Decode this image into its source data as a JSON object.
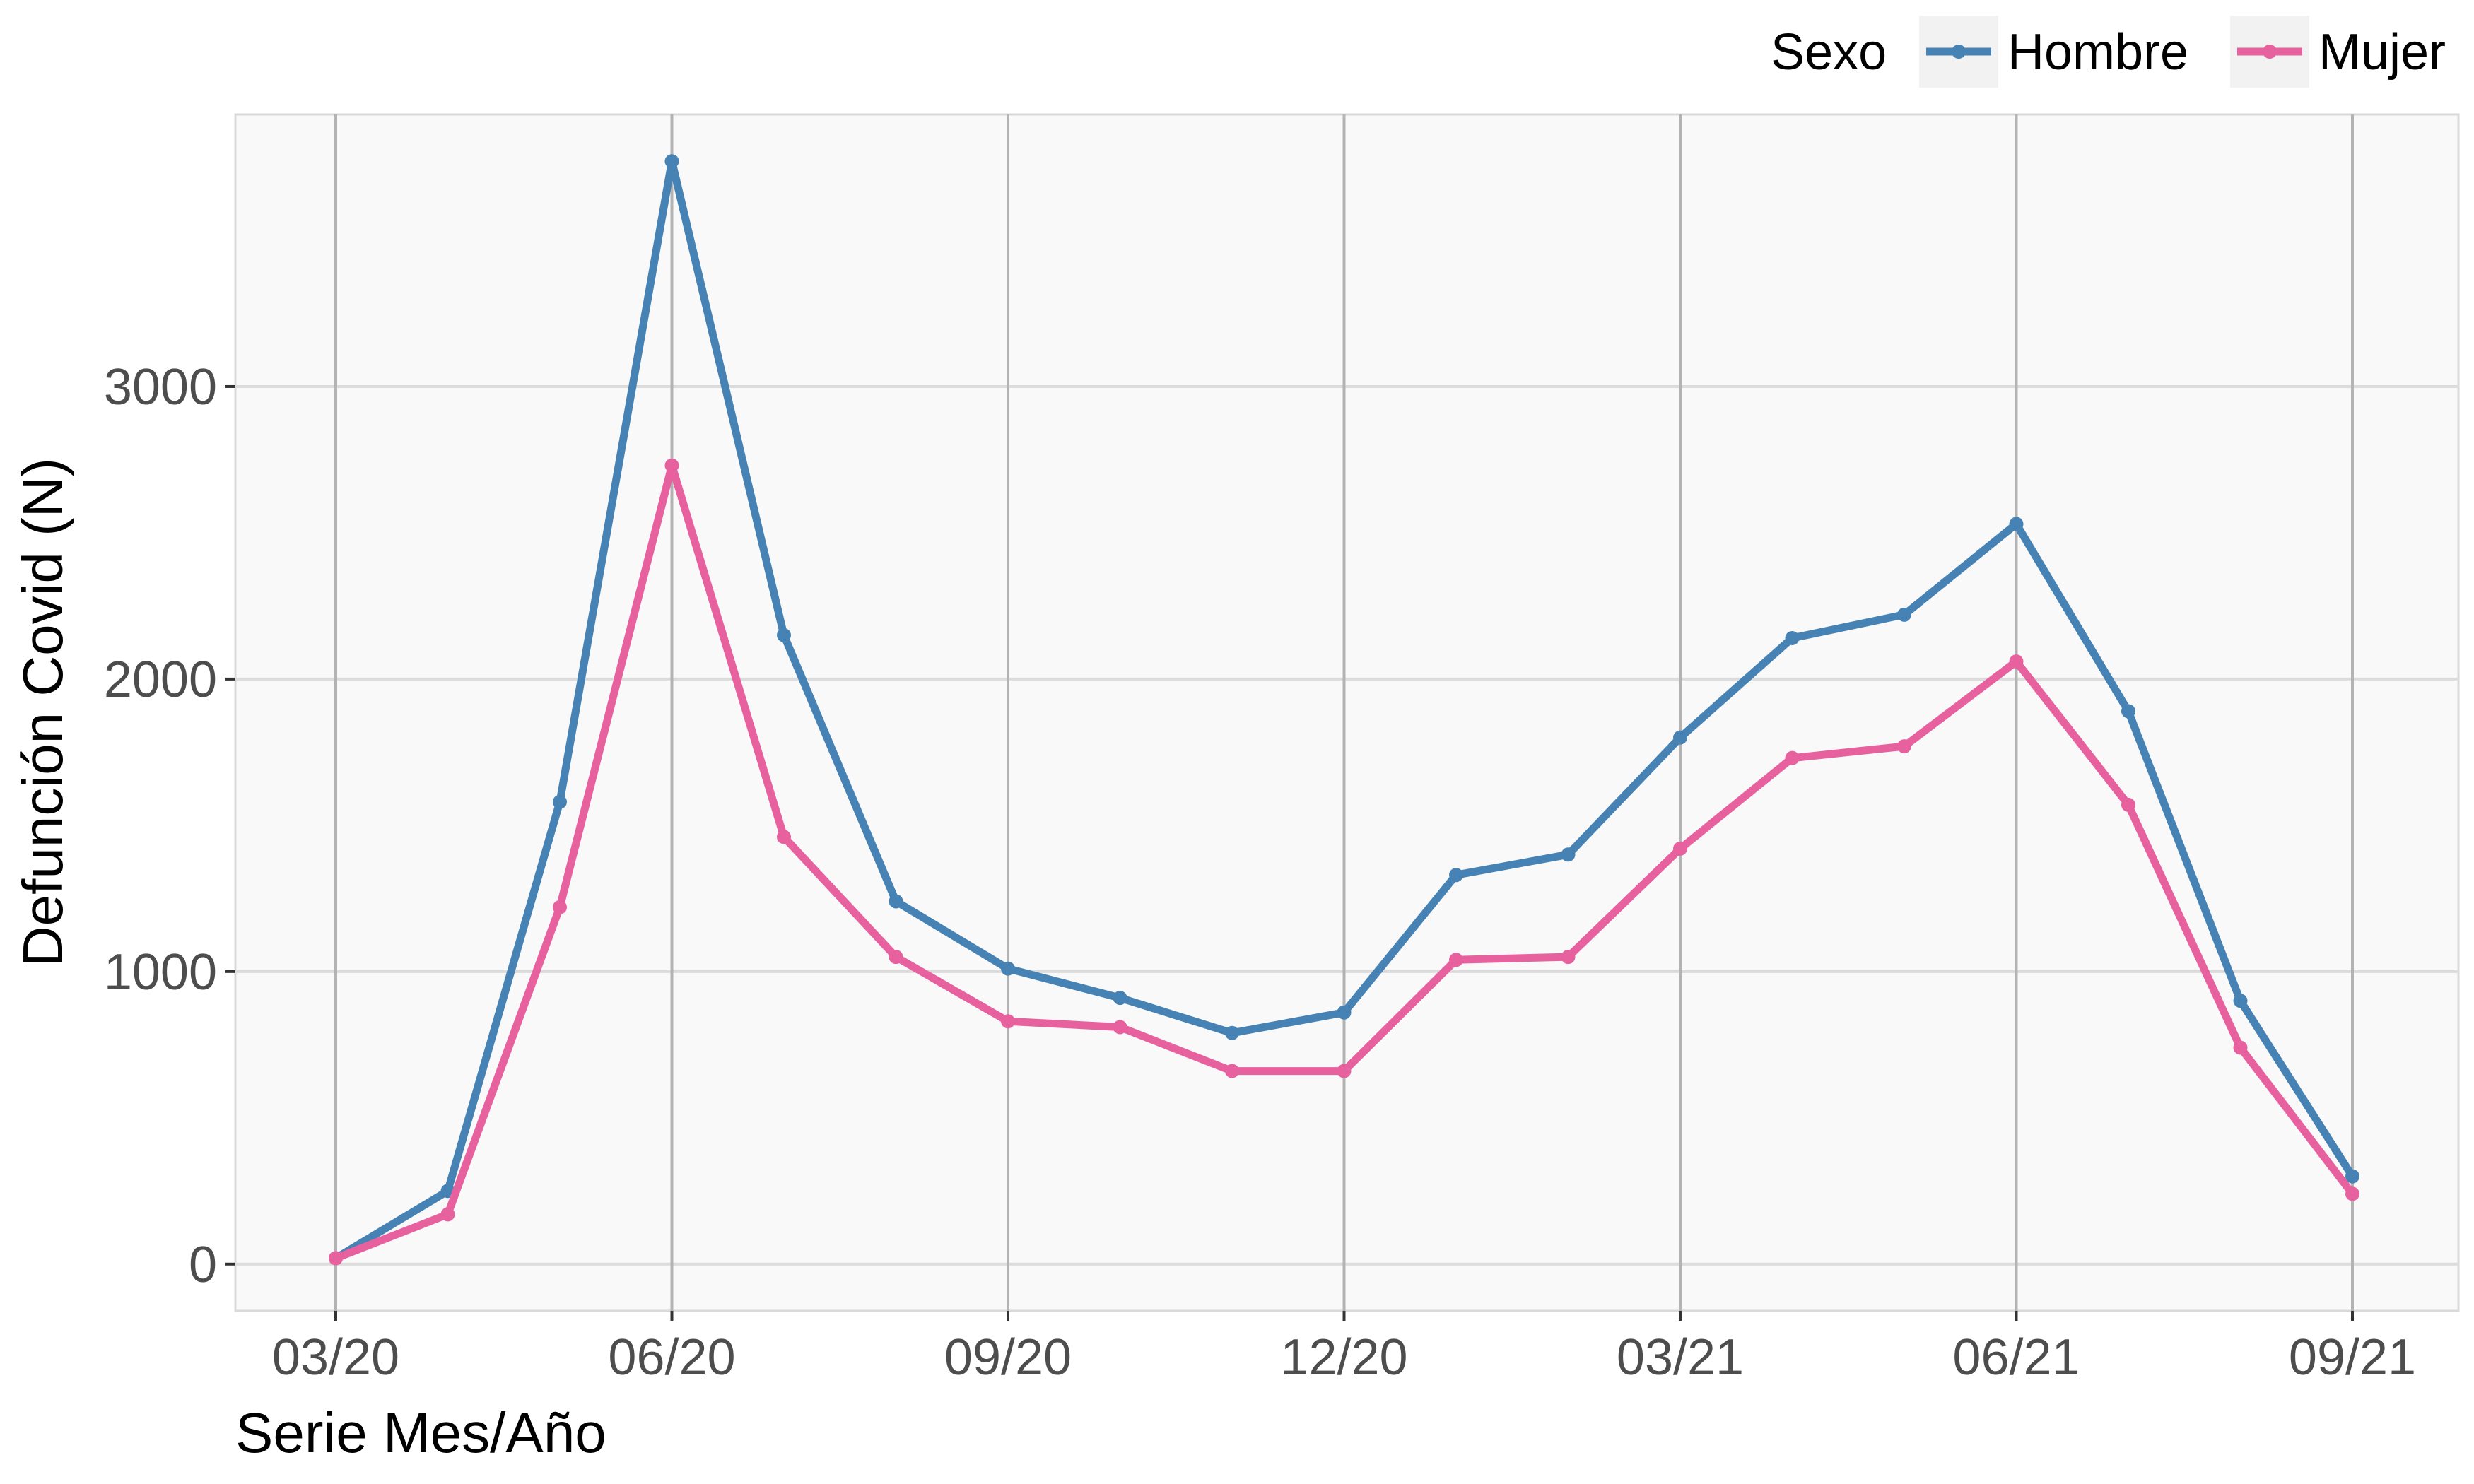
{
  "chart_data": {
    "type": "line",
    "title": "",
    "xlabel": "Serie Mes/Año",
    "ylabel": "Defunción Covid (N)",
    "x_tick_labels": [
      "03/20",
      "06/20",
      "09/20",
      "12/20",
      "03/21",
      "06/21",
      "09/21"
    ],
    "y_tick_labels": [
      "0",
      "1000",
      "2000",
      "3000"
    ],
    "x_months": [
      "03/20",
      "04/20",
      "05/20",
      "06/20",
      "07/20",
      "08/20",
      "09/20",
      "10/20",
      "11/20",
      "12/20",
      "01/21",
      "02/21",
      "03/21",
      "04/21",
      "05/21",
      "06/21",
      "07/21",
      "08/21",
      "09/21"
    ],
    "ylim": [
      -160,
      3930
    ],
    "grid": true,
    "legend": {
      "title": "Sexo",
      "position": "top-right"
    },
    "series": [
      {
        "name": "Hombre",
        "color": "#4682B4",
        "values": [
          20,
          250,
          1580,
          3770,
          2150,
          1240,
          1010,
          910,
          790,
          860,
          1330,
          1400,
          1800,
          2140,
          2220,
          2530,
          1890,
          900,
          300
        ]
      },
      {
        "name": "Mujer",
        "color": "#E7619F",
        "values": [
          20,
          170,
          1220,
          2730,
          1460,
          1050,
          830,
          810,
          660,
          660,
          1040,
          1050,
          1420,
          1730,
          1770,
          2060,
          1570,
          740,
          240
        ]
      }
    ]
  }
}
